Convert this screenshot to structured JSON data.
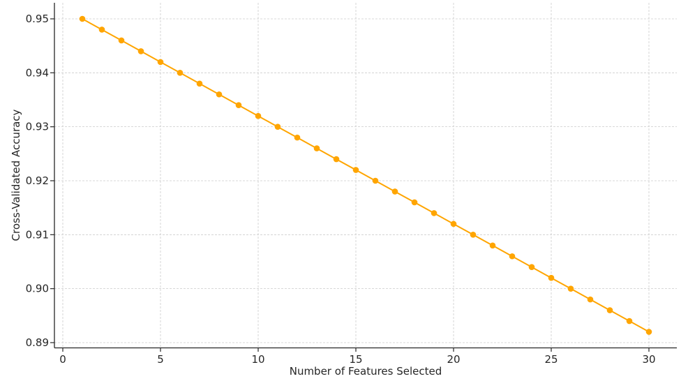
{
  "chart_data": {
    "type": "line",
    "title": "",
    "xlabel": "Number of Features Selected",
    "ylabel": "Cross-Validated Accuracy",
    "x": [
      1,
      2,
      3,
      4,
      5,
      6,
      7,
      8,
      9,
      10,
      11,
      12,
      13,
      14,
      15,
      16,
      17,
      18,
      19,
      20,
      21,
      22,
      23,
      24,
      25,
      26,
      27,
      28,
      29,
      30
    ],
    "series": [
      {
        "name": "Cross-Validated Accuracy",
        "color": "#FFA500",
        "marker": "circle",
        "values": [
          0.95,
          0.948,
          0.946,
          0.944,
          0.942,
          0.94,
          0.938,
          0.936,
          0.934,
          0.932,
          0.93,
          0.928,
          0.926,
          0.924,
          0.922,
          0.92,
          0.918,
          0.916,
          0.914,
          0.912,
          0.91,
          0.908,
          0.906,
          0.904,
          0.902,
          0.9,
          0.898,
          0.896,
          0.894,
          0.892
        ]
      }
    ],
    "xticks": [
      0,
      5,
      10,
      15,
      20,
      25,
      30
    ],
    "xtick_labels": [
      "0",
      "5",
      "10",
      "15",
      "20",
      "25",
      "30"
    ],
    "yticks": [
      0.89,
      0.9,
      0.91,
      0.92,
      0.93,
      0.94,
      0.95
    ],
    "ytick_labels": [
      "0.89",
      "0.90",
      "0.91",
      "0.92",
      "0.93",
      "0.94",
      "0.95"
    ],
    "xlim": [
      -0.45,
      31.45
    ],
    "ylim": [
      0.8892,
      0.9529
    ],
    "grid": true,
    "legend": null
  }
}
